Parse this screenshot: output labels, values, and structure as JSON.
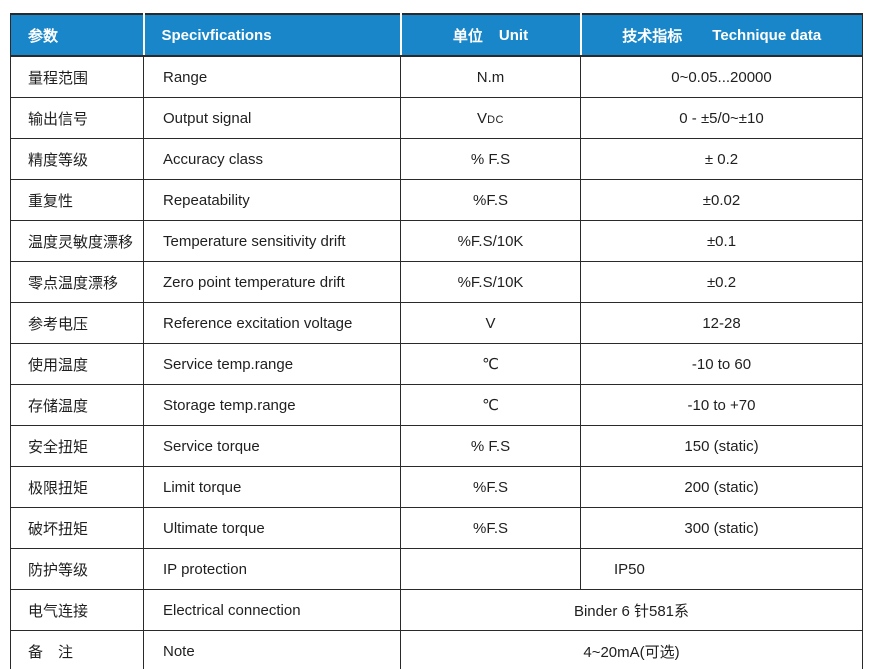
{
  "table": {
    "header": {
      "param": "参数",
      "spec": "Specivfications",
      "unit_cn": "单位",
      "unit_en": "Unit",
      "tech_cn": "技术指标",
      "tech_en": "Technique data"
    },
    "rows": [
      {
        "param": "量程范围",
        "spec": "Range",
        "unit": "N.m",
        "value": "0~0.05...20000"
      },
      {
        "param": "输出信号",
        "spec": "Output signal",
        "unit_main": "V",
        "unit_sub": "DC",
        "value": "0 - ±5/0~±10"
      },
      {
        "param": "精度等级",
        "spec": "Accuracy class",
        "unit": "% F.S",
        "value": "± 0.2"
      },
      {
        "param": "重复性",
        "spec": "Repeatability",
        "unit": "%F.S",
        "value": "±0.02"
      },
      {
        "param": "温度灵敏度漂移",
        "spec": "Temperature sensitivity drift",
        "unit": "%F.S/10K",
        "value": "±0.1"
      },
      {
        "param": "零点温度漂移",
        "spec": "Zero point temperature drift",
        "unit": "%F.S/10K",
        "value": "±0.2"
      },
      {
        "param": "参考电压",
        "spec": "Reference excitation voltage",
        "unit": "V",
        "value": "12-28"
      },
      {
        "param": "使用温度",
        "spec": "Service temp.range",
        "unit": "℃",
        "value": "-10 to 60"
      },
      {
        "param": "存储温度",
        "spec": "Storage temp.range",
        "unit": "℃",
        "value": "-10 to +70"
      },
      {
        "param": "安全扭矩",
        "spec": "Service torque",
        "unit": "% F.S",
        "value": "150 (static)"
      },
      {
        "param": "极限扭矩",
        "spec": "Limit torque",
        "unit": "%F.S",
        "value": "200 (static)"
      },
      {
        "param": "破坏扭矩",
        "spec": "Ultimate torque",
        "unit": "%F.S",
        "value": "300 (static)"
      },
      {
        "param": "防护等级",
        "spec": "IP protection",
        "unit": "",
        "value": "IP50"
      },
      {
        "param": "电气连接",
        "spec": "Electrical connection",
        "value": "Binder 6 针581系"
      },
      {
        "param": "备　注",
        "spec": "Note",
        "value": "4~20mA(可选)"
      }
    ],
    "colors": {
      "header_bg": "#1886c8",
      "header_text": "#ffffff",
      "body_text": "#1f1f1f",
      "border": "#2a2a2a"
    }
  }
}
